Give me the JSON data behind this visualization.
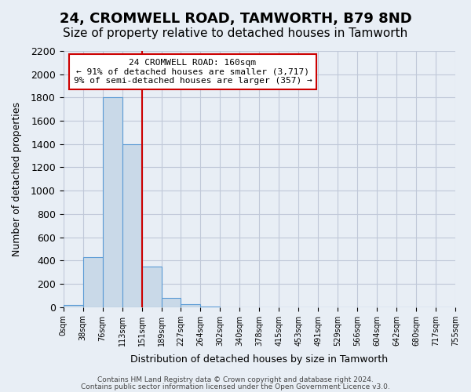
{
  "title": "24, CROMWELL ROAD, TAMWORTH, B79 8ND",
  "subtitle": "Size of property relative to detached houses in Tamworth",
  "xlabel": "Distribution of detached houses by size in Tamworth",
  "ylabel": "Number of detached properties",
  "bin_labels": [
    "0sqm",
    "38sqm",
    "76sqm",
    "113sqm",
    "151sqm",
    "189sqm",
    "227sqm",
    "264sqm",
    "302sqm",
    "340sqm",
    "378sqm",
    "415sqm",
    "453sqm",
    "491sqm",
    "529sqm",
    "566sqm",
    "604sqm",
    "642sqm",
    "680sqm",
    "717sqm",
    "755sqm"
  ],
  "bar_values": [
    20,
    430,
    1800,
    1400,
    350,
    80,
    25,
    5,
    0,
    0,
    0,
    0,
    0,
    0,
    0,
    0,
    0,
    0,
    0,
    0
  ],
  "bar_color": "#c9d9e8",
  "bar_edge_color": "#5b9bd5",
  "ylim": [
    0,
    2200
  ],
  "yticks": [
    0,
    200,
    400,
    600,
    800,
    1000,
    1200,
    1400,
    1600,
    1800,
    2000,
    2200
  ],
  "vline_x": 4,
  "vline_color": "#cc0000",
  "annotation_title": "24 CROMWELL ROAD: 160sqm",
  "annotation_line1": "← 91% of detached houses are smaller (3,717)",
  "annotation_line2": "9% of semi-detached houses are larger (357) →",
  "annotation_box_color": "#ffffff",
  "annotation_box_edge": "#cc0000",
  "grid_color": "#c0c8d8",
  "background_color": "#e8eef5",
  "footer1": "Contains HM Land Registry data © Crown copyright and database right 2024.",
  "footer2": "Contains public sector information licensed under the Open Government Licence v3.0.",
  "title_fontsize": 13,
  "subtitle_fontsize": 11
}
